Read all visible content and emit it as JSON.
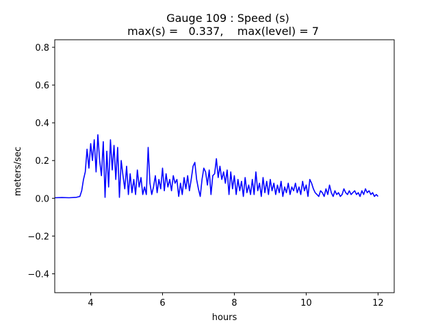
{
  "chart_data": {
    "type": "line",
    "title": "Gauge 109 : Speed (s)",
    "subtitle": "max(s) =   0.337,    max(level) = 7",
    "xlabel": "hours",
    "ylabel": "meters/sec",
    "xlim": [
      3.0,
      12.45
    ],
    "ylim": [
      -0.5,
      0.84
    ],
    "xticks": [
      4,
      6,
      8,
      10,
      12
    ],
    "yticks": [
      -0.4,
      -0.2,
      0.0,
      0.2,
      0.4,
      0.6,
      0.8
    ],
    "xtick_labels": [
      "4",
      "6",
      "8",
      "10",
      "12"
    ],
    "ytick_labels": [
      "−0.4",
      "−0.2",
      "0.0",
      "0.2",
      "0.4",
      "0.6",
      "0.8"
    ],
    "grid": false,
    "series": [
      {
        "color": "#0000ff",
        "x": [
          3.0,
          3.2,
          3.4,
          3.6,
          3.7,
          3.75,
          3.8,
          3.85,
          3.9,
          3.95,
          4.0,
          4.05,
          4.1,
          4.15,
          4.2,
          4.25,
          4.3,
          4.35,
          4.4,
          4.45,
          4.5,
          4.55,
          4.6,
          4.65,
          4.7,
          4.75,
          4.8,
          4.85,
          4.9,
          4.95,
          5.0,
          5.05,
          5.1,
          5.15,
          5.2,
          5.25,
          5.3,
          5.35,
          5.4,
          5.45,
          5.5,
          5.55,
          5.6,
          5.65,
          5.7,
          5.75,
          5.8,
          5.85,
          5.9,
          5.95,
          6.0,
          6.05,
          6.1,
          6.15,
          6.2,
          6.25,
          6.3,
          6.35,
          6.4,
          6.45,
          6.5,
          6.55,
          6.6,
          6.65,
          6.7,
          6.75,
          6.8,
          6.85,
          6.9,
          6.95,
          7.0,
          7.05,
          7.1,
          7.15,
          7.2,
          7.25,
          7.3,
          7.35,
          7.4,
          7.45,
          7.5,
          7.55,
          7.6,
          7.65,
          7.7,
          7.75,
          7.8,
          7.85,
          7.9,
          7.95,
          8.0,
          8.05,
          8.1,
          8.15,
          8.2,
          8.25,
          8.3,
          8.35,
          8.4,
          8.45,
          8.5,
          8.55,
          8.6,
          8.65,
          8.7,
          8.75,
          8.8,
          8.85,
          8.9,
          8.95,
          9.0,
          9.05,
          9.1,
          9.15,
          9.2,
          9.25,
          9.3,
          9.35,
          9.4,
          9.45,
          9.5,
          9.55,
          9.6,
          9.65,
          9.7,
          9.75,
          9.8,
          9.85,
          9.9,
          9.95,
          10.0,
          10.05,
          10.1,
          10.15,
          10.2,
          10.25,
          10.3,
          10.35,
          10.4,
          10.45,
          10.5,
          10.55,
          10.6,
          10.65,
          10.7,
          10.75,
          10.8,
          10.85,
          10.9,
          10.95,
          11.0,
          11.05,
          11.1,
          11.15,
          11.2,
          11.25,
          11.3,
          11.35,
          11.4,
          11.45,
          11.5,
          11.55,
          11.6,
          11.65,
          11.7,
          11.75,
          11.8,
          11.85,
          11.9,
          11.95,
          12.0
        ],
        "y": [
          0.003,
          0.004,
          0.003,
          0.005,
          0.01,
          0.04,
          0.1,
          0.14,
          0.26,
          0.16,
          0.29,
          0.2,
          0.31,
          0.14,
          0.337,
          0.2,
          0.12,
          0.3,
          0.005,
          0.25,
          0.06,
          0.31,
          0.15,
          0.28,
          0.1,
          0.27,
          0.005,
          0.2,
          0.12,
          0.05,
          0.17,
          0.02,
          0.13,
          0.03,
          0.1,
          0.02,
          0.15,
          0.06,
          0.11,
          0.02,
          0.06,
          0.02,
          0.27,
          0.08,
          0.02,
          0.06,
          0.12,
          0.03,
          0.1,
          0.05,
          0.16,
          0.04,
          0.13,
          0.06,
          0.1,
          0.04,
          0.12,
          0.08,
          0.1,
          0.01,
          0.08,
          0.02,
          0.11,
          0.05,
          0.12,
          0.04,
          0.1,
          0.17,
          0.19,
          0.1,
          0.05,
          0.01,
          0.1,
          0.16,
          0.14,
          0.07,
          0.15,
          0.02,
          0.12,
          0.13,
          0.21,
          0.11,
          0.17,
          0.1,
          0.14,
          0.08,
          0.15,
          0.02,
          0.14,
          0.05,
          0.12,
          0.02,
          0.1,
          0.04,
          0.09,
          0.01,
          0.11,
          0.03,
          0.07,
          0.02,
          0.1,
          0.02,
          0.14,
          0.04,
          0.08,
          0.01,
          0.11,
          0.03,
          0.09,
          0.02,
          0.1,
          0.04,
          0.08,
          0.02,
          0.07,
          0.03,
          0.09,
          0.01,
          0.06,
          0.03,
          0.08,
          0.02,
          0.06,
          0.04,
          0.08,
          0.03,
          0.06,
          0.02,
          0.09,
          0.04,
          0.07,
          0.01,
          0.1,
          0.08,
          0.05,
          0.03,
          0.02,
          0.01,
          0.04,
          0.03,
          0.01,
          0.05,
          0.02,
          0.07,
          0.03,
          0.01,
          0.04,
          0.02,
          0.03,
          0.01,
          0.02,
          0.05,
          0.03,
          0.02,
          0.04,
          0.02,
          0.03,
          0.04,
          0.02,
          0.03,
          0.01,
          0.04,
          0.02,
          0.05,
          0.03,
          0.04,
          0.02,
          0.03,
          0.01,
          0.02,
          0.01
        ]
      }
    ]
  }
}
